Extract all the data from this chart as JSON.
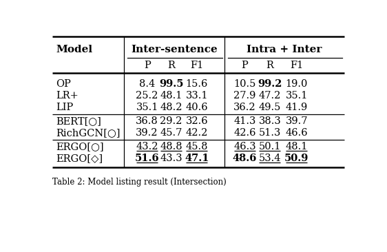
{
  "rows": [
    {
      "model": "OP",
      "inter": [
        "8.4",
        "99.5",
        "15.6"
      ],
      "intra": [
        "10.5",
        "99.2",
        "19.0"
      ],
      "bold_inter": [
        false,
        true,
        false
      ],
      "bold_intra": [
        false,
        true,
        false
      ],
      "under_inter": [
        false,
        false,
        false
      ],
      "under_intra": [
        false,
        false,
        false
      ]
    },
    {
      "model": "LR+",
      "inter": [
        "25.2",
        "48.1",
        "33.1"
      ],
      "intra": [
        "27.9",
        "47.2",
        "35.1"
      ],
      "bold_inter": [
        false,
        false,
        false
      ],
      "bold_intra": [
        false,
        false,
        false
      ],
      "under_inter": [
        false,
        false,
        false
      ],
      "under_intra": [
        false,
        false,
        false
      ]
    },
    {
      "model": "LIP",
      "inter": [
        "35.1",
        "48.2",
        "40.6"
      ],
      "intra": [
        "36.2",
        "49.5",
        "41.9"
      ],
      "bold_inter": [
        false,
        false,
        false
      ],
      "bold_intra": [
        false,
        false,
        false
      ],
      "under_inter": [
        false,
        false,
        false
      ],
      "under_intra": [
        false,
        false,
        false
      ]
    },
    {
      "model": "BERT[○]",
      "inter": [
        "36.8",
        "29.2",
        "32.6"
      ],
      "intra": [
        "41.3",
        "38.3",
        "39.7"
      ],
      "bold_inter": [
        false,
        false,
        false
      ],
      "bold_intra": [
        false,
        false,
        false
      ],
      "under_inter": [
        false,
        false,
        false
      ],
      "under_intra": [
        false,
        false,
        false
      ]
    },
    {
      "model": "RichGCN[○]",
      "inter": [
        "39.2",
        "45.7",
        "42.2"
      ],
      "intra": [
        "42.6",
        "51.3",
        "46.6"
      ],
      "bold_inter": [
        false,
        false,
        false
      ],
      "bold_intra": [
        false,
        false,
        false
      ],
      "under_inter": [
        false,
        false,
        false
      ],
      "under_intra": [
        false,
        false,
        false
      ]
    },
    {
      "model": "ERGO[○]",
      "inter": [
        "43.2",
        "48.8",
        "45.8"
      ],
      "intra": [
        "46.3",
        "50.1",
        "48.1"
      ],
      "bold_inter": [
        false,
        false,
        false
      ],
      "bold_intra": [
        false,
        false,
        false
      ],
      "under_inter": [
        true,
        true,
        true
      ],
      "under_intra": [
        true,
        true,
        true
      ]
    },
    {
      "model": "ERGO[◇]",
      "inter": [
        "51.6",
        "43.3",
        "47.1"
      ],
      "intra": [
        "48.6",
        "53.4",
        "50.9"
      ],
      "bold_inter": [
        true,
        false,
        true
      ],
      "bold_intra": [
        true,
        false,
        true
      ],
      "under_inter": [
        true,
        false,
        true
      ],
      "under_intra": [
        false,
        true,
        true
      ]
    }
  ],
  "group_separators_after": [
    2,
    4
  ],
  "caption": "Table 2: Model listing result (Intersection)"
}
